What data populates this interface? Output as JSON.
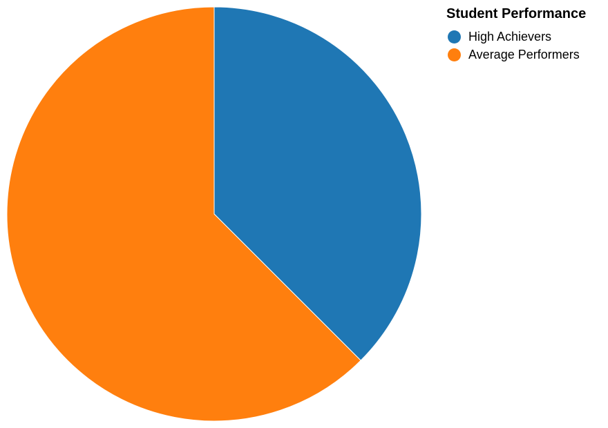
{
  "chart_data": {
    "type": "pie",
    "legend_title": "Student Performance",
    "legend_position": "top-right",
    "categories": [
      "High Achievers",
      "Average Performers"
    ],
    "values": [
      37.5,
      62.5
    ],
    "colors": [
      "#1f77b4",
      "#ff7f0e"
    ],
    "start_angle_deg": 0,
    "direction": "clockwise"
  }
}
